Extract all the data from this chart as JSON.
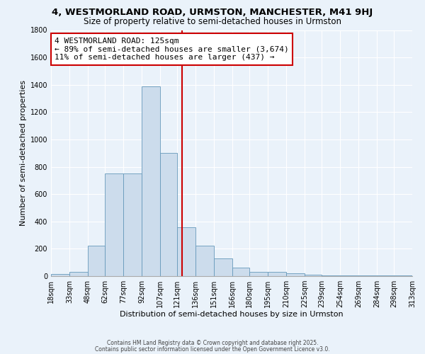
{
  "title_line1": "4, WESTMORLAND ROAD, URMSTON, MANCHESTER, M41 9HJ",
  "title_line2": "Size of property relative to semi-detached houses in Urmston",
  "xlabel": "Distribution of semi-detached houses by size in Urmston",
  "ylabel": "Number of semi-detached properties",
  "bar_color": "#ccdcec",
  "bar_edge_color": "#6699bb",
  "annotation_box_color": "#ffffff",
  "annotation_border_color": "#cc0000",
  "annotation_line1": "4 WESTMORLAND ROAD: 125sqm",
  "annotation_line2": "← 89% of semi-detached houses are smaller (3,674)",
  "annotation_line3": "11% of semi-detached houses are larger (437) →",
  "vline_color": "#cc0000",
  "property_size": 125,
  "footer_line1": "Contains HM Land Registry data © Crown copyright and database right 2025.",
  "footer_line2": "Contains public sector information licensed under the Open Government Licence v3.0.",
  "bin_edges": [
    18,
    33,
    48,
    62,
    77,
    92,
    107,
    121,
    136,
    151,
    166,
    180,
    195,
    210,
    225,
    239,
    254,
    269,
    284,
    298,
    313
  ],
  "counts": [
    15,
    30,
    225,
    750,
    750,
    1390,
    900,
    360,
    225,
    130,
    60,
    30,
    30,
    20,
    10,
    5,
    5,
    5,
    5,
    5
  ],
  "ylim": [
    0,
    1800
  ],
  "yticks": [
    0,
    200,
    400,
    600,
    800,
    1000,
    1200,
    1400,
    1600,
    1800
  ],
  "bg_color": "#eaf2fa",
  "grid_color": "#ffffff",
  "title_fontsize": 9.5,
  "subtitle_fontsize": 8.5,
  "annotation_fontsize": 8,
  "footer_fontsize": 5.5,
  "xlabel_fontsize": 8,
  "ylabel_fontsize": 8,
  "tick_fontsize": 7
}
